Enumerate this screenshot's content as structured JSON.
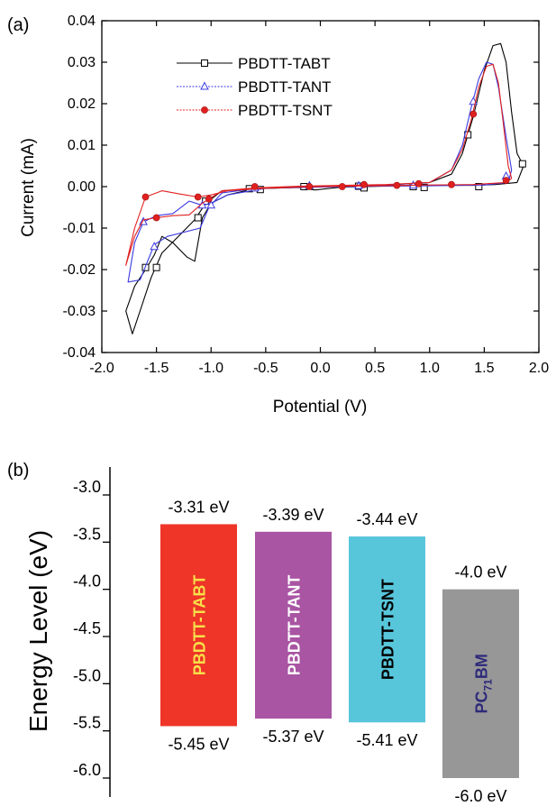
{
  "chart_data": [
    {
      "type": "line",
      "panel_label": "(a)",
      "xlabel": "Potential (V)",
      "ylabel": "Current (mA)",
      "xlim": [
        -2.0,
        2.0
      ],
      "ylim": [
        -0.04,
        0.04
      ],
      "x_ticks": [
        "-2.0",
        "-1.5",
        "-1.0",
        "-0.5",
        "0.0",
        "0.5",
        "1.0",
        "1.5",
        "2.0"
      ],
      "y_ticks": [
        "0.04",
        "0.03",
        "0.02",
        "0.01",
        "0.00",
        "-0.01",
        "-0.02",
        "-0.03",
        "-0.04"
      ],
      "legend": "top-left",
      "grid": false,
      "series": [
        {
          "name": "PBDTT-TABT",
          "color": "#000000",
          "marker": "open-square",
          "curve": [
            [
              -1.78,
              -0.03
            ],
            [
              -1.72,
              -0.0355
            ],
            [
              -1.65,
              -0.03
            ],
            [
              -1.55,
              -0.022
            ],
            [
              -1.45,
              -0.016
            ],
            [
              -1.3,
              -0.012
            ],
            [
              -1.15,
              -0.008
            ],
            [
              -1.05,
              -0.004
            ],
            [
              -0.9,
              -0.001
            ],
            [
              -0.6,
              -0.0005
            ],
            [
              -0.2,
              0.0
            ],
            [
              0.2,
              0.0002
            ],
            [
              0.6,
              0.0004
            ],
            [
              1.0,
              0.001
            ],
            [
              1.2,
              0.003
            ],
            [
              1.3,
              0.008
            ],
            [
              1.4,
              0.017
            ],
            [
              1.5,
              0.028
            ],
            [
              1.58,
              0.034
            ],
            [
              1.65,
              0.0345
            ],
            [
              1.7,
              0.03
            ],
            [
              1.75,
              0.018
            ],
            [
              1.8,
              0.008
            ],
            [
              1.86,
              0.005
            ],
            [
              1.8,
              0.001
            ],
            [
              1.6,
              0.0005
            ],
            [
              1.4,
              0.0003
            ],
            [
              1.0,
              0.0003
            ],
            [
              0.6,
              0.0001
            ],
            [
              0.2,
              -0.0001
            ],
            [
              -0.05,
              -0.0008
            ],
            [
              -0.2,
              -0.0002
            ],
            [
              -0.6,
              -0.0005
            ],
            [
              -0.85,
              -0.002
            ],
            [
              -1.0,
              -0.004
            ],
            [
              -1.08,
              -0.0075
            ],
            [
              -1.15,
              -0.018
            ],
            [
              -1.22,
              -0.017
            ],
            [
              -1.35,
              -0.0135
            ],
            [
              -1.45,
              -0.012
            ],
            [
              -1.52,
              -0.0165
            ],
            [
              -1.6,
              -0.02
            ],
            [
              -1.7,
              -0.024
            ],
            [
              -1.78,
              -0.03
            ]
          ],
          "markers": [
            [
              -1.6,
              -0.0195
            ],
            [
              -1.5,
              -0.0195
            ],
            [
              -1.12,
              -0.0075
            ],
            [
              -1.05,
              -0.0035
            ],
            [
              -0.65,
              -0.0005
            ],
            [
              -0.55,
              -0.0007
            ],
            [
              -0.15,
              0.0
            ],
            [
              0.35,
              0.0001
            ],
            [
              0.4,
              -0.0003
            ],
            [
              0.85,
              0.0
            ],
            [
              0.95,
              -0.0002
            ],
            [
              1.35,
              0.0125
            ],
            [
              1.45,
              0.0
            ],
            [
              1.85,
              0.0055
            ]
          ]
        },
        {
          "name": "PBDTT-TANT",
          "color": "#3a3ae0",
          "marker": "open-triangle",
          "curve": [
            [
              -1.76,
              -0.023
            ],
            [
              -1.65,
              -0.0225
            ],
            [
              -1.52,
              -0.014
            ],
            [
              -1.4,
              -0.012
            ],
            [
              -1.25,
              -0.011
            ],
            [
              -1.1,
              -0.01
            ],
            [
              -1.02,
              -0.005
            ],
            [
              -0.9,
              -0.0015
            ],
            [
              -0.6,
              -0.0005
            ],
            [
              -0.2,
              0.0
            ],
            [
              0.2,
              0.0002
            ],
            [
              0.6,
              0.0004
            ],
            [
              1.0,
              0.001
            ],
            [
              1.2,
              0.004
            ],
            [
              1.3,
              0.01
            ],
            [
              1.38,
              0.019
            ],
            [
              1.45,
              0.026
            ],
            [
              1.52,
              0.03
            ],
            [
              1.58,
              0.0295
            ],
            [
              1.63,
              0.024
            ],
            [
              1.7,
              0.012
            ],
            [
              1.75,
              0.004
            ],
            [
              1.72,
              0.001
            ],
            [
              1.5,
              0.0004
            ],
            [
              1.0,
              0.0002
            ],
            [
              0.5,
              0.0001
            ],
            [
              0.0,
              -0.0001
            ],
            [
              -0.5,
              -0.0004
            ],
            [
              -0.85,
              -0.002
            ],
            [
              -1.0,
              -0.004
            ],
            [
              -1.08,
              -0.0045
            ],
            [
              -1.2,
              -0.0035
            ],
            [
              -1.35,
              -0.0065
            ],
            [
              -1.5,
              -0.007
            ],
            [
              -1.62,
              -0.0085
            ],
            [
              -1.7,
              -0.0135
            ],
            [
              -1.76,
              -0.023
            ]
          ],
          "markers": [
            [
              -1.62,
              -0.0085
            ],
            [
              -1.52,
              -0.0145
            ],
            [
              -1.08,
              -0.0045
            ],
            [
              -1.0,
              -0.0045
            ],
            [
              -0.6,
              -0.0004
            ],
            [
              -0.1,
              0.0002
            ],
            [
              0.35,
              0.0002
            ],
            [
              0.85,
              0.0003
            ],
            [
              1.4,
              0.0205
            ],
            [
              1.7,
              0.0025
            ]
          ]
        },
        {
          "name": "PBDTT-TSNT",
          "color": "#e02020",
          "marker": "filled-circle",
          "curve": [
            [
              -1.78,
              -0.019
            ],
            [
              -1.7,
              -0.012
            ],
            [
              -1.62,
              -0.008
            ],
            [
              -1.5,
              -0.0075
            ],
            [
              -1.35,
              -0.007
            ],
            [
              -1.2,
              -0.0068
            ],
            [
              -1.08,
              -0.004
            ],
            [
              -0.9,
              -0.001
            ],
            [
              -0.6,
              -0.0003
            ],
            [
              -0.2,
              0.0001
            ],
            [
              0.2,
              0.0003
            ],
            [
              0.6,
              0.0005
            ],
            [
              1.0,
              0.001
            ],
            [
              1.2,
              0.004
            ],
            [
              1.3,
              0.009
            ],
            [
              1.38,
              0.016
            ],
            [
              1.45,
              0.024
            ],
            [
              1.52,
              0.029
            ],
            [
              1.58,
              0.0295
            ],
            [
              1.63,
              0.025
            ],
            [
              1.68,
              0.014
            ],
            [
              1.72,
              0.005
            ],
            [
              1.75,
              0.002
            ],
            [
              1.7,
              0.001
            ],
            [
              1.4,
              0.0005
            ],
            [
              1.0,
              0.0004
            ],
            [
              0.5,
              0.0002
            ],
            [
              0.0,
              0.0
            ],
            [
              -0.5,
              -0.0004
            ],
            [
              -0.85,
              -0.001
            ],
            [
              -1.0,
              -0.002
            ],
            [
              -1.12,
              -0.0025
            ],
            [
              -1.28,
              -0.0018
            ],
            [
              -1.45,
              -0.001
            ],
            [
              -1.6,
              -0.0025
            ],
            [
              -1.7,
              -0.01
            ],
            [
              -1.78,
              -0.019
            ]
          ],
          "markers": [
            [
              -1.6,
              -0.0025
            ],
            [
              -1.5,
              -0.0075
            ],
            [
              -1.12,
              -0.0025
            ],
            [
              -1.02,
              -0.003
            ],
            [
              -0.6,
              0.0
            ],
            [
              -0.1,
              0.0
            ],
            [
              0.2,
              0.0
            ],
            [
              0.4,
              0.0005
            ],
            [
              0.7,
              0.0003
            ],
            [
              0.9,
              0.0007
            ],
            [
              1.2,
              0.0005
            ],
            [
              1.4,
              0.0175
            ],
            [
              1.7,
              0.0015
            ]
          ]
        }
      ]
    },
    {
      "type": "bar",
      "panel_label": "(b)",
      "ylabel": "Energy Level (eV)",
      "ylim": [
        -6.0,
        -3.0
      ],
      "y_ticks": [
        "-3.0",
        "-3.5",
        "-4.0",
        "-4.5",
        "-5.0",
        "-5.5",
        "-6.0"
      ],
      "bars": [
        {
          "label": "PBDTT-TABT",
          "top": -3.31,
          "bottom": -5.45,
          "top_label": "-3.31 eV",
          "bottom_label": "-5.45 eV",
          "color": "#ee3528",
          "text_color": "#f7e04a"
        },
        {
          "label": "PBDTT-TANT",
          "top": -3.39,
          "bottom": -5.37,
          "top_label": "-3.39 eV",
          "bottom_label": "-5.37 eV",
          "color": "#a955a3",
          "text_color": "#ffffff"
        },
        {
          "label": "PBDTT-TSNT",
          "top": -3.44,
          "bottom": -5.41,
          "top_label": "-3.44 eV",
          "bottom_label": "-5.41 eV",
          "color": "#58c6da",
          "text_color": "#000000"
        },
        {
          "label": "PC",
          "label_sub": "71",
          "label_tail": "BM",
          "top": -4.0,
          "bottom": -6.0,
          "top_label": "-4.0 eV",
          "bottom_label": "-6.0 eV",
          "color": "#979798",
          "text_color": "#2e2a7a"
        }
      ]
    }
  ]
}
